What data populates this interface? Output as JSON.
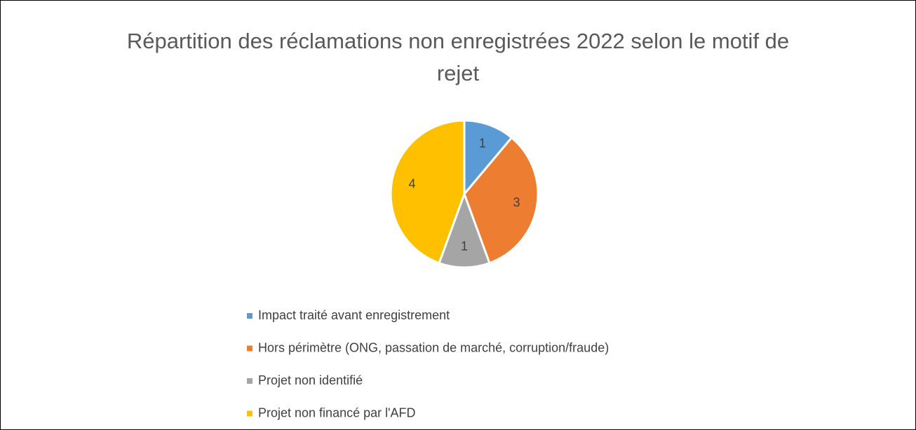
{
  "chart_data": {
    "type": "pie",
    "title": "Répartition des réclamations non enregistrées 2022 selon le motif de rejet",
    "categories": [
      "Impact traité avant enregistrement",
      "Hors périmètre (ONG, passation de marché, corruption/fraude)",
      "Projet non identifié",
      "Projet non financé par l'AFD"
    ],
    "values": [
      1,
      3,
      1,
      4
    ],
    "colors": [
      "#5b9bd5",
      "#ed7d31",
      "#a5a5a5",
      "#ffc000"
    ],
    "legend": "bottom"
  }
}
